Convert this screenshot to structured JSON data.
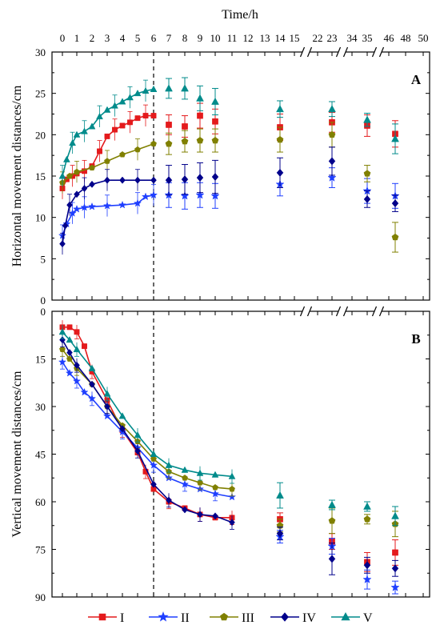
{
  "chart_data": {
    "type": "scatter",
    "top_axis": {
      "title": "Time/h",
      "ticks": [
        {
          "label": "0",
          "value": 0
        },
        {
          "label": "1",
          "value": 1
        },
        {
          "label": "2",
          "value": 2
        },
        {
          "label": "3",
          "value": 3
        },
        {
          "label": "4",
          "value": 4
        },
        {
          "label": "5",
          "value": 5
        },
        {
          "label": "6",
          "value": 6
        },
        {
          "label": "7",
          "value": 7
        },
        {
          "label": "8",
          "value": 8
        },
        {
          "label": "9",
          "value": 9
        },
        {
          "label": "10",
          "value": 10
        },
        {
          "label": "11",
          "value": 11
        },
        {
          "label": "12",
          "value": 12
        },
        {
          "label": "13",
          "value": 13
        },
        {
          "label": "14",
          "value": 14
        },
        {
          "label": "15",
          "value": 15
        },
        {
          "label": "22",
          "value": 22
        },
        {
          "label": "23",
          "value": 23
        },
        {
          "label": "34",
          "value": 34
        },
        {
          "label": "35",
          "value": 35
        },
        {
          "label": "46",
          "value": 46
        },
        {
          "label": "48",
          "value": 48
        },
        {
          "label": "50",
          "value": 50
        }
      ],
      "axis_breaks": [
        "15-22",
        "23-34",
        "35-46"
      ],
      "dashed_line_at": 6
    },
    "legend": {
      "position": "bottom",
      "entries": [
        {
          "name": "I",
          "color": "#e41a1c",
          "marker": "square"
        },
        {
          "name": "II",
          "color": "#1f3fff",
          "marker": "star"
        },
        {
          "name": "III",
          "color": "#808000",
          "marker": "pentagon"
        },
        {
          "name": "IV",
          "color": "#00008b",
          "marker": "diamond"
        },
        {
          "name": "V",
          "color": "#008b8b",
          "marker": "triangle"
        }
      ]
    },
    "panels": [
      {
        "label": "A",
        "ylabel": "Horizontal movement distances/cm",
        "ylim": [
          0,
          30
        ],
        "yticks": [
          "0",
          "5",
          "10",
          "15",
          "20",
          "25",
          "30"
        ],
        "inverted": false,
        "series": [
          {
            "name": "I",
            "curve": [
              [
                0,
                13.5
              ],
              [
                0.3,
                14.6
              ],
              [
                0.7,
                15.0
              ],
              [
                1,
                15.3
              ],
              [
                1.5,
                15.6
              ],
              [
                2,
                16.2
              ],
              [
                2.5,
                18.0
              ],
              [
                3,
                19.8
              ],
              [
                3.5,
                20.6
              ],
              [
                4,
                21.1
              ],
              [
                4.5,
                21.5
              ],
              [
                5,
                22.0
              ],
              [
                5.5,
                22.3
              ],
              [
                6,
                22.3
              ]
            ],
            "points": [
              [
                7,
                21.2,
                1.2
              ],
              [
                8,
                21.0,
                1.3
              ],
              [
                9,
                22.3,
                1.5
              ],
              [
                10,
                21.6,
                1.5
              ],
              [
                14,
                20.9,
                1.6
              ],
              [
                23,
                21.5,
                1.2
              ],
              [
                35,
                21.1,
                1.3
              ],
              [
                47,
                20.1,
                1.6
              ]
            ]
          },
          {
            "name": "II",
            "curve": [
              [
                0,
                7.8
              ],
              [
                0.3,
                9.2
              ],
              [
                0.7,
                10.5
              ],
              [
                1,
                11.0
              ],
              [
                1.5,
                11.2
              ],
              [
                2,
                11.3
              ],
              [
                3,
                11.4
              ],
              [
                4,
                11.5
              ],
              [
                5,
                11.7
              ],
              [
                5.5,
                12.5
              ],
              [
                6,
                12.7
              ]
            ],
            "points": [
              [
                7,
                12.7,
                1.5
              ],
              [
                8,
                12.6,
                1.6
              ],
              [
                9,
                12.7,
                1.5
              ],
              [
                10,
                12.6,
                1.5
              ],
              [
                14,
                14.0,
                1.4
              ],
              [
                23,
                14.8,
                1.2
              ],
              [
                35,
                13.2,
                1.5
              ],
              [
                47,
                12.6,
                1.5
              ]
            ]
          },
          {
            "name": "III",
            "curve": [
              [
                0,
                14.2
              ],
              [
                0.5,
                15.0
              ],
              [
                1,
                15.5
              ],
              [
                2,
                16.0
              ],
              [
                3,
                16.8
              ],
              [
                4,
                17.6
              ],
              [
                5,
                18.2
              ],
              [
                6,
                18.9
              ]
            ],
            "points": [
              [
                7,
                18.9,
                1.3
              ],
              [
                8,
                19.2,
                1.3
              ],
              [
                9,
                19.3,
                1.4
              ],
              [
                10,
                19.3,
                1.4
              ],
              [
                14,
                19.4,
                1.5
              ],
              [
                23,
                20.0,
                1.5
              ],
              [
                35,
                15.3,
                1.0
              ],
              [
                47,
                7.6,
                1.8
              ]
            ]
          },
          {
            "name": "IV",
            "curve": [
              [
                0,
                6.8
              ],
              [
                0.2,
                9.0
              ],
              [
                0.5,
                11.5
              ],
              [
                1,
                12.8
              ],
              [
                1.5,
                13.5
              ],
              [
                2,
                14.0
              ],
              [
                3,
                14.5
              ],
              [
                4,
                14.5
              ],
              [
                5,
                14.5
              ],
              [
                6,
                14.5
              ]
            ],
            "points": [
              [
                7,
                14.5,
                1.8
              ],
              [
                8,
                14.6,
                1.8
              ],
              [
                9,
                14.8,
                1.8
              ],
              [
                10,
                14.9,
                2.0
              ],
              [
                14,
                15.4,
                1.8
              ],
              [
                23,
                16.8,
                1.7
              ],
              [
                35,
                12.2,
                1.0
              ],
              [
                47,
                11.7,
                1.0
              ]
            ]
          },
          {
            "name": "V",
            "curve": [
              [
                0,
                15.0
              ],
              [
                0.3,
                17.0
              ],
              [
                0.7,
                19.0
              ],
              [
                1,
                20.0
              ],
              [
                1.5,
                20.4
              ],
              [
                2,
                21.0
              ],
              [
                2.5,
                22.2
              ],
              [
                3,
                23.0
              ],
              [
                3.5,
                23.5
              ],
              [
                4,
                24.0
              ],
              [
                4.5,
                24.5
              ],
              [
                5,
                25.0
              ],
              [
                5.5,
                25.3
              ],
              [
                6,
                25.5
              ]
            ],
            "points": [
              [
                7,
                25.6,
                1.2
              ],
              [
                8,
                25.6,
                1.3
              ],
              [
                9,
                24.4,
                1.5
              ],
              [
                10,
                24.0,
                1.6
              ],
              [
                14,
                23.1,
                1.0
              ],
              [
                23,
                23.1,
                0.9
              ],
              [
                35,
                21.8,
                0.8
              ],
              [
                47,
                19.5,
                1.8
              ]
            ]
          }
        ]
      },
      {
        "label": "B",
        "ylabel": "Vertical movement distances/cm",
        "ylim": [
          0,
          90
        ],
        "yticks": [
          "0",
          "15",
          "30",
          "45",
          "60",
          "75",
          "90"
        ],
        "inverted": true,
        "series": [
          {
            "name": "I",
            "curve": [
              [
                0,
                5.0
              ],
              [
                0.5,
                5.0
              ],
              [
                1,
                6.5
              ],
              [
                1.5,
                11
              ],
              [
                2,
                19.0
              ],
              [
                3,
                28.0
              ],
              [
                4,
                37.5
              ],
              [
                5,
                44.5
              ],
              [
                5.5,
                50.5
              ],
              [
                6,
                56.0
              ],
              [
                7,
                60.0
              ],
              [
                8,
                62.0
              ],
              [
                9,
                64.0
              ],
              [
                10,
                65.0
              ],
              [
                11,
                65.0
              ]
            ],
            "points": [
              [
                14,
                65.5,
                2.0
              ],
              [
                23,
                72.5,
                2.5
              ],
              [
                35,
                79.0,
                3.0
              ],
              [
                47,
                76.0,
                4.0
              ]
            ]
          },
          {
            "name": "II",
            "curve": [
              [
                0,
                16.0
              ],
              [
                0.5,
                19.5
              ],
              [
                1,
                22.0
              ],
              [
                1.5,
                25.5
              ],
              [
                2,
                27.5
              ],
              [
                3,
                33.0
              ],
              [
                4,
                38.0
              ],
              [
                5,
                43.0
              ],
              [
                6,
                48.5
              ],
              [
                7,
                52.5
              ],
              [
                8,
                54.5
              ],
              [
                9,
                56.0
              ],
              [
                10,
                57.5
              ],
              [
                11,
                58.5
              ]
            ],
            "points": [
              [
                14,
                71.0,
                2.0
              ],
              [
                23,
                74.0,
                2.5
              ],
              [
                35,
                84.5,
                3.0
              ],
              [
                47,
                87.0,
                2.0
              ]
            ]
          },
          {
            "name": "III",
            "curve": [
              [
                0,
                12.0
              ],
              [
                0.5,
                15.0
              ],
              [
                1,
                18.0
              ],
              [
                2,
                23.0
              ],
              [
                3,
                30.0
              ],
              [
                4,
                36.0
              ],
              [
                5,
                41.0
              ],
              [
                6,
                46.5
              ],
              [
                7,
                50.5
              ],
              [
                8,
                52.5
              ],
              [
                9,
                54.0
              ],
              [
                10,
                55.5
              ],
              [
                11,
                56.0
              ]
            ],
            "points": [
              [
                14,
                67.5,
                2.0
              ],
              [
                23,
                66.0,
                4.0
              ],
              [
                35,
                65.5,
                1.5
              ],
              [
                47,
                67.0,
                4.0
              ]
            ]
          },
          {
            "name": "IV",
            "curve": [
              [
                0,
                9.0
              ],
              [
                0.5,
                13.0
              ],
              [
                1,
                17.0
              ],
              [
                2,
                23.0
              ],
              [
                3,
                30.0
              ],
              [
                4,
                37.0
              ],
              [
                5,
                44.0
              ],
              [
                6,
                54.5
              ],
              [
                7,
                59.5
              ],
              [
                8,
                62.5
              ],
              [
                9,
                64.0
              ],
              [
                10,
                64.5
              ],
              [
                11,
                66.5
              ]
            ],
            "points": [
              [
                14,
                70.0,
                2.0
              ],
              [
                23,
                78.0,
                5.0
              ],
              [
                35,
                80.0,
                2.5
              ],
              [
                47,
                81.0,
                2.5
              ]
            ]
          },
          {
            "name": "V",
            "curve": [
              [
                0,
                6.5
              ],
              [
                0.5,
                9.0
              ],
              [
                1,
                12.0
              ],
              [
                2,
                18.0
              ],
              [
                3,
                26.0
              ],
              [
                4,
                33.0
              ],
              [
                5,
                39.0
              ],
              [
                6,
                45.0
              ],
              [
                7,
                48.5
              ],
              [
                8,
                50.0
              ],
              [
                9,
                51.0
              ],
              [
                10,
                51.5
              ],
              [
                11,
                52.0
              ]
            ],
            "points": [
              [
                14,
                58.0,
                4.0
              ],
              [
                23,
                61.0,
                1.5
              ],
              [
                35,
                61.5,
                1.5
              ],
              [
                47,
                64.5,
                3.0
              ]
            ]
          }
        ]
      }
    ]
  }
}
